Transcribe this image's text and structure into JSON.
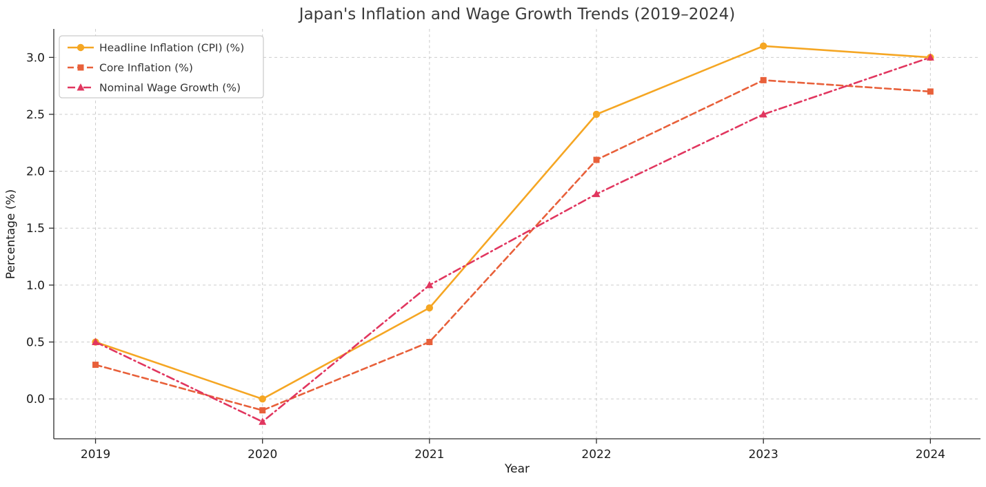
{
  "chart_data": {
    "type": "line",
    "title": "Japan's Inflation and Wage Growth Trends (2019–2024)",
    "xlabel": "Year",
    "ylabel": "Percentage (%)",
    "x": [
      2019,
      2020,
      2021,
      2022,
      2023,
      2024
    ],
    "x_tick_labels": [
      "2019",
      "2020",
      "2021",
      "2022",
      "2023",
      "2024"
    ],
    "yticks": [
      0.0,
      0.5,
      1.0,
      1.5,
      2.0,
      2.5,
      3.0
    ],
    "ylim": [
      -0.35,
      3.25
    ],
    "xlim": [
      2018.75,
      2024.3
    ],
    "grid": true,
    "legend_position": "upper-left",
    "series": [
      {
        "id": "headline-inflation",
        "name": "Headline Inflation (CPI) (%)",
        "color": "#f5a623",
        "linestyle": "solid",
        "dash": "",
        "marker": "circle",
        "values": [
          0.5,
          0.0,
          0.8,
          2.5,
          3.1,
          3.0
        ]
      },
      {
        "id": "core-inflation",
        "name": "Core Inflation (%)",
        "color": "#e8603a",
        "linestyle": "dashed",
        "dash": "9 5",
        "marker": "square",
        "values": [
          0.3,
          -0.1,
          0.5,
          2.1,
          2.8,
          2.7
        ]
      },
      {
        "id": "nominal-wage-growth",
        "name": "Nominal Wage Growth (%)",
        "color": "#e1365f",
        "linestyle": "dashdot",
        "dash": "11 5 2 5",
        "marker": "triangle",
        "values": [
          0.5,
          -0.2,
          1.0,
          1.8,
          2.5,
          3.0
        ]
      }
    ]
  }
}
